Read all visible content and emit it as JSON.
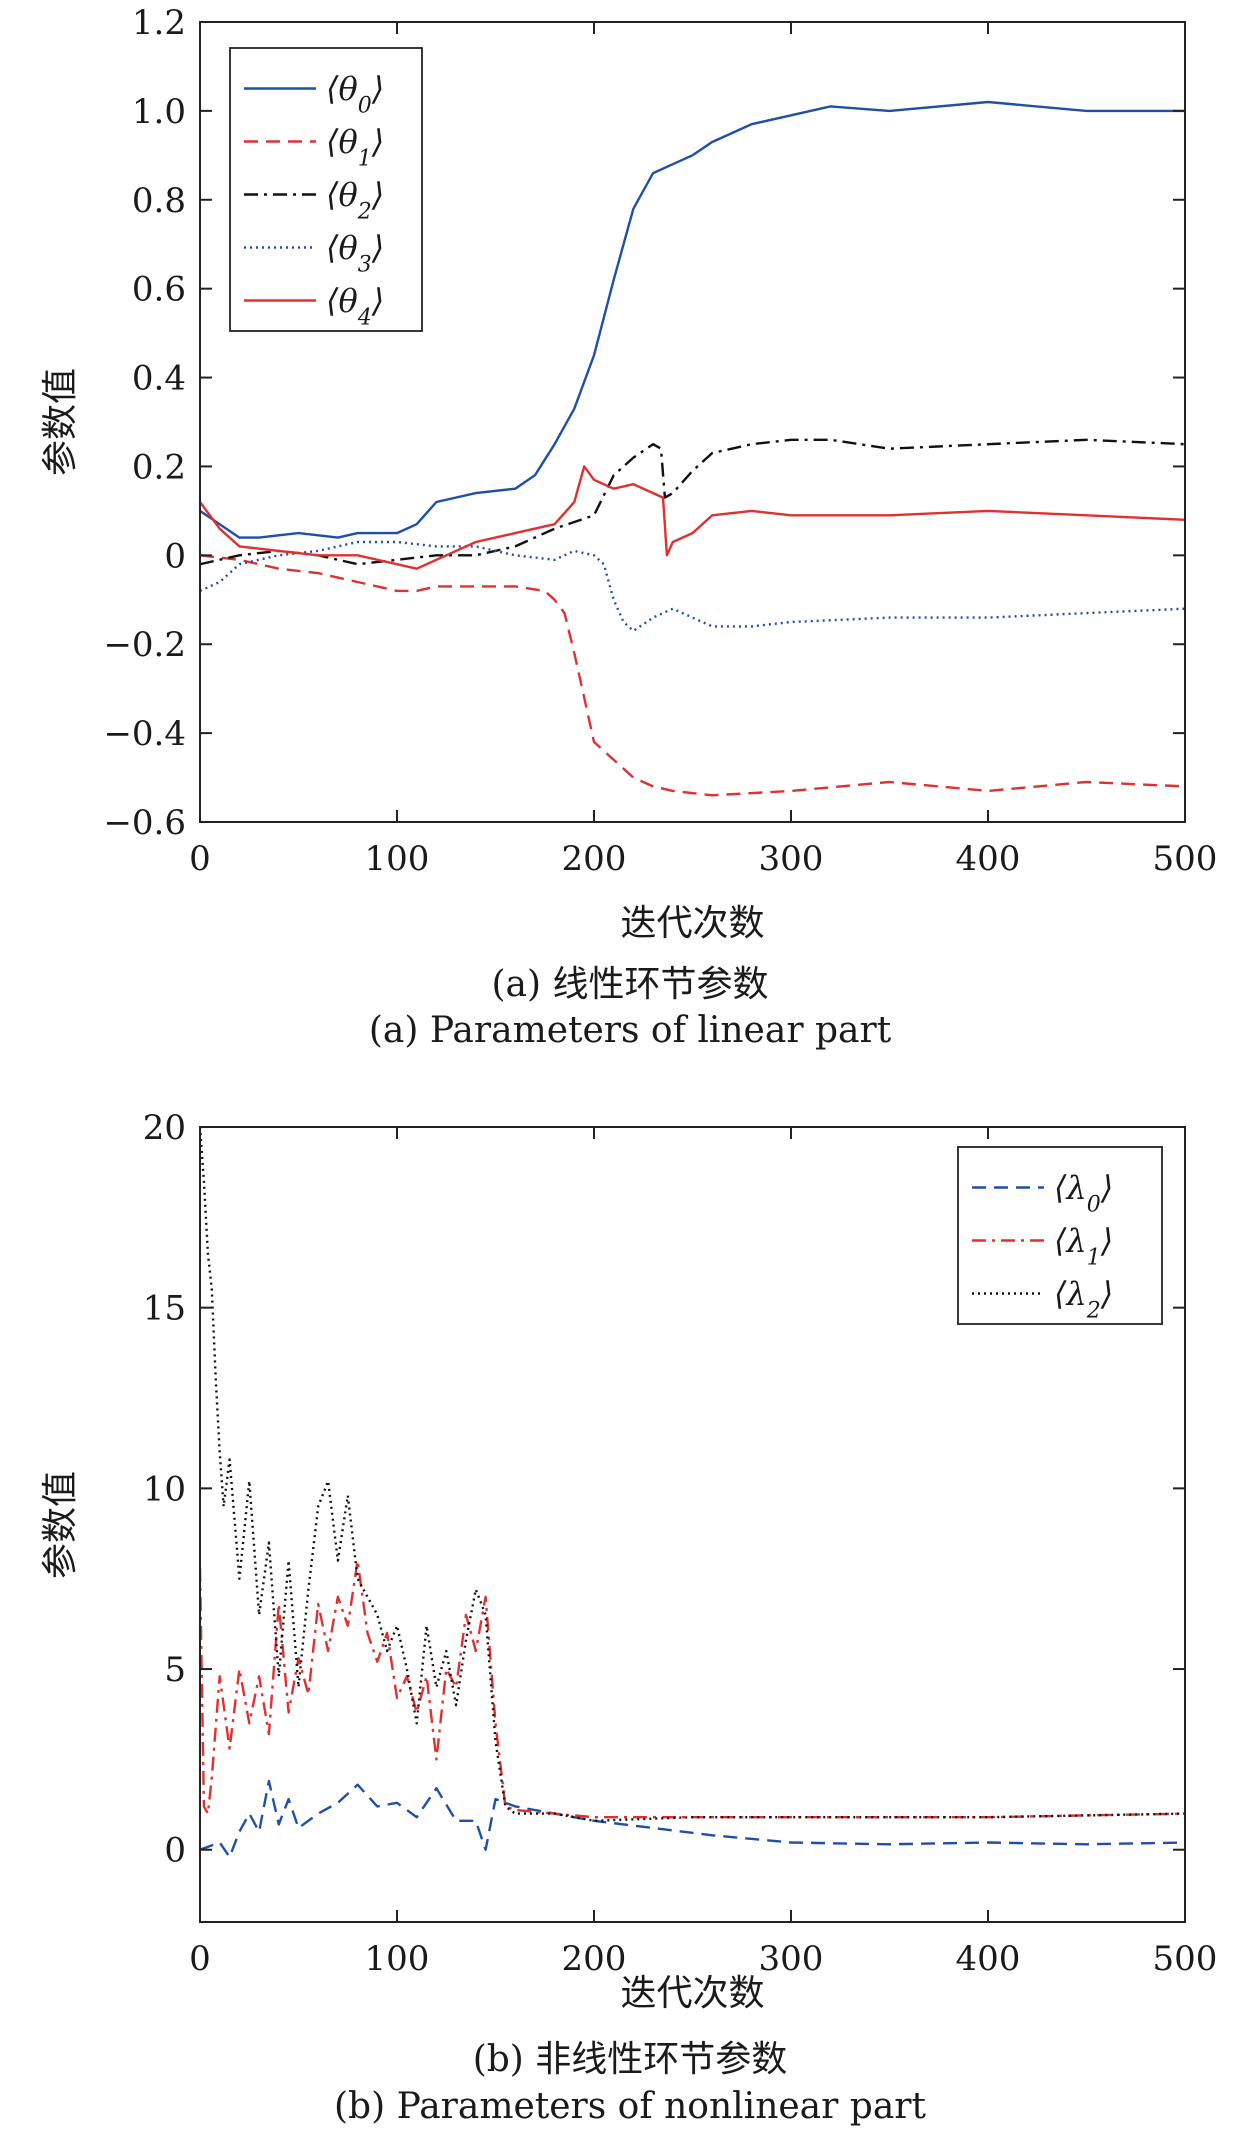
{
  "figure": {
    "panel_a": {
      "caption_cn": "(a) 线性环节参数",
      "caption_en": "(a) Parameters of linear part"
    },
    "panel_b": {
      "caption_cn": "(b) 非线性环节参数",
      "caption_en": "(b) Parameters of nonlinear part"
    }
  },
  "colors": {
    "blue": "#1f4fa8",
    "red": "#e03030",
    "black": "#111111"
  },
  "chart_data": [
    {
      "type": "line",
      "panel": "a",
      "xlabel": "迭代次数",
      "ylabel": "参数值",
      "xlim": [
        0,
        500
      ],
      "ylim": [
        -0.6,
        1.2
      ],
      "xticks": [
        0,
        100,
        200,
        300,
        400,
        500
      ],
      "yticks": [
        -0.6,
        -0.4,
        -0.2,
        0,
        0.2,
        0.4,
        0.6,
        0.8,
        1.0,
        1.2
      ],
      "ytick_labels": [
        "−0.6",
        "−0.4",
        "−0.2",
        "0",
        "0.2",
        "0.4",
        "0.6",
        "0.8",
        "1.0",
        "1.2"
      ],
      "grid": false,
      "legend_position": "top-left",
      "series": [
        {
          "name": "⟨θ0⟩",
          "color": "#1f4fa8",
          "dash": "solid",
          "x": [
            0,
            10,
            20,
            30,
            50,
            70,
            80,
            100,
            110,
            120,
            140,
            160,
            170,
            180,
            190,
            200,
            210,
            220,
            230,
            240,
            250,
            260,
            280,
            300,
            320,
            350,
            400,
            450,
            500
          ],
          "y": [
            0.1,
            0.07,
            0.04,
            0.04,
            0.05,
            0.04,
            0.05,
            0.05,
            0.07,
            0.12,
            0.14,
            0.15,
            0.18,
            0.25,
            0.33,
            0.45,
            0.62,
            0.78,
            0.86,
            0.88,
            0.9,
            0.93,
            0.97,
            0.99,
            1.01,
            1.0,
            1.02,
            1.0,
            1.0
          ]
        },
        {
          "name": "⟨θ1⟩",
          "color": "#e03030",
          "dash": "dashed",
          "x": [
            0,
            20,
            40,
            60,
            80,
            100,
            110,
            120,
            140,
            160,
            175,
            180,
            185,
            190,
            195,
            200,
            210,
            220,
            230,
            240,
            260,
            300,
            350,
            400,
            450,
            500
          ],
          "y": [
            0.0,
            -0.01,
            -0.03,
            -0.04,
            -0.06,
            -0.08,
            -0.08,
            -0.07,
            -0.07,
            -0.07,
            -0.08,
            -0.1,
            -0.13,
            -0.22,
            -0.32,
            -0.42,
            -0.46,
            -0.5,
            -0.52,
            -0.53,
            -0.54,
            -0.53,
            -0.51,
            -0.53,
            -0.51,
            -0.52
          ]
        },
        {
          "name": "⟨θ2⟩",
          "color": "#111111",
          "dash": "dashdot",
          "x": [
            0,
            20,
            40,
            60,
            80,
            100,
            120,
            140,
            160,
            180,
            200,
            210,
            220,
            230,
            234,
            236,
            240,
            250,
            260,
            280,
            300,
            320,
            350,
            400,
            450,
            500
          ],
          "y": [
            -0.02,
            0.0,
            0.01,
            0.0,
            -0.02,
            -0.01,
            0.0,
            0.0,
            0.02,
            0.06,
            0.09,
            0.18,
            0.22,
            0.25,
            0.24,
            0.13,
            0.14,
            0.19,
            0.23,
            0.25,
            0.26,
            0.26,
            0.24,
            0.25,
            0.26,
            0.25
          ]
        },
        {
          "name": "⟨θ3⟩",
          "color": "#1f4fa8",
          "dash": "dotted",
          "x": [
            0,
            10,
            20,
            40,
            60,
            80,
            100,
            120,
            140,
            160,
            180,
            190,
            200,
            205,
            210,
            215,
            220,
            230,
            240,
            250,
            260,
            280,
            300,
            350,
            400,
            450,
            500
          ],
          "y": [
            -0.08,
            -0.06,
            -0.02,
            0.0,
            0.01,
            0.03,
            0.03,
            0.02,
            0.02,
            0.0,
            -0.01,
            0.01,
            0.0,
            -0.02,
            -0.1,
            -0.15,
            -0.17,
            -0.14,
            -0.12,
            -0.14,
            -0.16,
            -0.16,
            -0.15,
            -0.14,
            -0.14,
            -0.13,
            -0.12
          ]
        },
        {
          "name": "⟨θ4⟩",
          "color": "#e03030",
          "dash": "solid",
          "x": [
            0,
            10,
            20,
            40,
            60,
            80,
            100,
            110,
            120,
            140,
            160,
            180,
            190,
            195,
            200,
            210,
            220,
            230,
            235,
            237,
            240,
            250,
            260,
            280,
            300,
            350,
            400,
            450,
            500
          ],
          "y": [
            0.12,
            0.06,
            0.02,
            0.01,
            0.0,
            0.0,
            -0.02,
            -0.03,
            -0.01,
            0.03,
            0.05,
            0.07,
            0.12,
            0.2,
            0.17,
            0.15,
            0.16,
            0.14,
            0.13,
            0.0,
            0.03,
            0.05,
            0.09,
            0.1,
            0.09,
            0.09,
            0.1,
            0.09,
            0.08
          ]
        }
      ]
    },
    {
      "type": "line",
      "panel": "b",
      "xlabel": "迭代次数",
      "ylabel": "参数值",
      "xlim": [
        0,
        500
      ],
      "ylim": [
        -2,
        20
      ],
      "xticks": [
        0,
        100,
        200,
        300,
        400,
        500
      ],
      "yticks": [
        0,
        5,
        10,
        15,
        20
      ],
      "ytick_labels": [
        "0",
        "5",
        "10",
        "15",
        "20"
      ],
      "grid": false,
      "legend_position": "top-right",
      "series": [
        {
          "name": "⟨λ0⟩",
          "color": "#1f4fa8",
          "dash": "dashed",
          "x": [
            0,
            5,
            10,
            15,
            20,
            25,
            30,
            35,
            40,
            45,
            50,
            60,
            70,
            80,
            90,
            100,
            110,
            120,
            130,
            140,
            145,
            150,
            160,
            180,
            200,
            230,
            260,
            300,
            350,
            400,
            450,
            500
          ],
          "y": [
            0.0,
            0.1,
            0.2,
            -0.2,
            0.5,
            1.0,
            0.5,
            1.9,
            0.7,
            1.4,
            0.6,
            1.0,
            1.3,
            1.8,
            1.2,
            1.3,
            0.9,
            1.7,
            0.8,
            0.8,
            0.0,
            1.4,
            1.2,
            1.0,
            0.8,
            0.6,
            0.4,
            0.2,
            0.15,
            0.2,
            0.15,
            0.2
          ]
        },
        {
          "name": "⟨λ1⟩",
          "color": "#e03030",
          "dash": "dashdot",
          "x": [
            0,
            2,
            4,
            6,
            10,
            15,
            20,
            25,
            30,
            35,
            40,
            45,
            50,
            55,
            60,
            65,
            70,
            75,
            80,
            85,
            90,
            95,
            100,
            105,
            110,
            115,
            120,
            125,
            130,
            135,
            140,
            145,
            150,
            155,
            160,
            180,
            200,
            250,
            300,
            350,
            400,
            450,
            500
          ],
          "y": [
            7.8,
            1.2,
            1.0,
            2.0,
            4.8,
            2.8,
            5.0,
            3.5,
            4.8,
            3.2,
            6.8,
            3.8,
            5.3,
            4.3,
            6.8,
            5.5,
            7.0,
            6.2,
            8.0,
            6.0,
            5.2,
            6.0,
            4.2,
            4.8,
            3.8,
            4.8,
            2.5,
            5.0,
            4.5,
            6.5,
            5.5,
            7.0,
            3.5,
            1.2,
            1.1,
            1.0,
            0.9,
            0.9,
            0.9,
            0.9,
            0.9,
            0.95,
            1.0
          ]
        },
        {
          "name": "⟨λ2⟩",
          "color": "#111111",
          "dash": "dotted",
          "x": [
            0,
            2,
            4,
            6,
            8,
            10,
            12,
            15,
            20,
            25,
            30,
            35,
            40,
            45,
            50,
            55,
            60,
            65,
            70,
            75,
            80,
            85,
            90,
            95,
            100,
            105,
            110,
            115,
            120,
            125,
            130,
            135,
            140,
            145,
            150,
            155,
            160,
            180,
            200,
            250,
            300,
            350,
            400,
            450,
            500
          ],
          "y": [
            20.0,
            18.5,
            16.5,
            15.5,
            13.0,
            11.0,
            9.5,
            10.8,
            7.5,
            10.2,
            6.5,
            8.5,
            4.8,
            8.0,
            4.5,
            7.2,
            9.5,
            10.2,
            8.0,
            9.8,
            7.5,
            7.0,
            6.5,
            5.5,
            6.2,
            5.0,
            3.5,
            6.2,
            4.5,
            5.5,
            4.0,
            5.8,
            7.2,
            6.5,
            3.0,
            1.2,
            1.0,
            1.0,
            0.8,
            0.9,
            0.9,
            0.9,
            0.9,
            0.95,
            1.0
          ]
        }
      ]
    }
  ]
}
